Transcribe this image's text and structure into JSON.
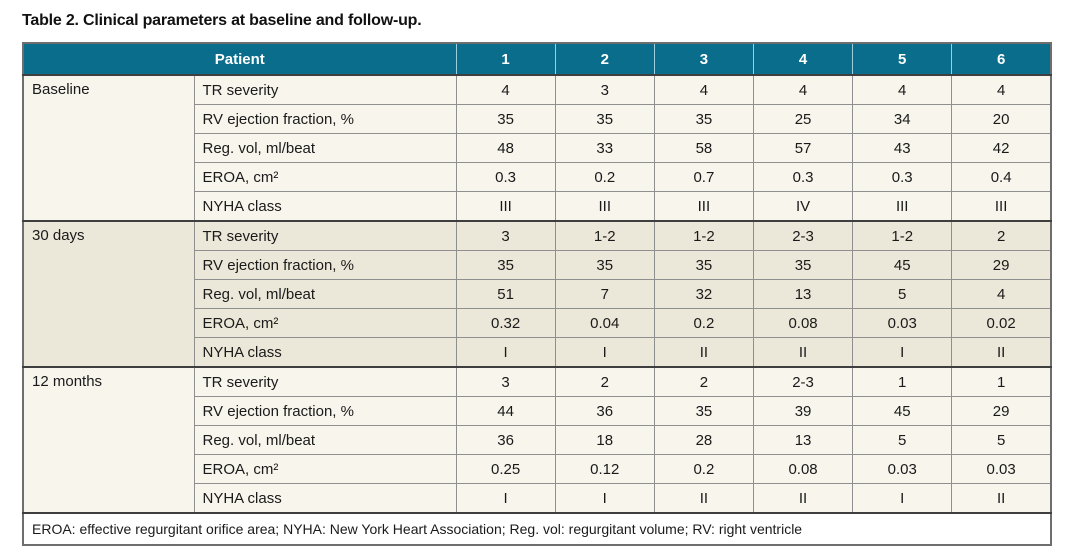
{
  "title": "Table 2. Clinical parameters at baseline and follow-up.",
  "colors": {
    "header_bg": "#0b6d8c",
    "header_text": "#ffffff",
    "section_light_bg": "#f8f5ed",
    "section_dark_bg": "#ece8d9",
    "footnote_bg": "#ffffff"
  },
  "table": {
    "header": {
      "patient_label": "Patient",
      "patient_columns": [
        "1",
        "2",
        "3",
        "4",
        "5",
        "6"
      ]
    },
    "row_labels": [
      "TR severity",
      "RV ejection fraction, %",
      "Reg. vol, ml/beat",
      "EROA, cm²",
      "NYHA class"
    ],
    "sections": [
      {
        "label": "Baseline",
        "shade": "light",
        "rows": [
          [
            "4",
            "3",
            "4",
            "4",
            "4",
            "4"
          ],
          [
            "35",
            "35",
            "35",
            "25",
            "34",
            "20"
          ],
          [
            "48",
            "33",
            "58",
            "57",
            "43",
            "42"
          ],
          [
            "0.3",
            "0.2",
            "0.7",
            "0.3",
            "0.3",
            "0.4"
          ],
          [
            "III",
            "III",
            "III",
            "IV",
            "III",
            "III"
          ]
        ]
      },
      {
        "label": "30 days",
        "shade": "dark",
        "rows": [
          [
            "3",
            "1-2",
            "1-2",
            "2-3",
            "1-2",
            "2"
          ],
          [
            "35",
            "35",
            "35",
            "35",
            "45",
            "29"
          ],
          [
            "51",
            "7",
            "32",
            "13",
            "5",
            "4"
          ],
          [
            "0.32",
            "0.04",
            "0.2",
            "0.08",
            "0.03",
            "0.02"
          ],
          [
            "I",
            "I",
            "II",
            "II",
            "I",
            "II"
          ]
        ]
      },
      {
        "label": "12 months",
        "shade": "light",
        "rows": [
          [
            "3",
            "2",
            "2",
            "2-3",
            "1",
            "1"
          ],
          [
            "44",
            "36",
            "35",
            "39",
            "45",
            "29"
          ],
          [
            "36",
            "18",
            "28",
            "13",
            "5",
            "5"
          ],
          [
            "0.25",
            "0.12",
            "0.2",
            "0.08",
            "0.03",
            "0.03"
          ],
          [
            "I",
            "I",
            "II",
            "II",
            "I",
            "II"
          ]
        ]
      }
    ],
    "footnote": "EROA: effective regurgitant orifice area; NYHA: New York Heart Association; Reg. vol: regurgitant volume; RV: right ventricle"
  }
}
